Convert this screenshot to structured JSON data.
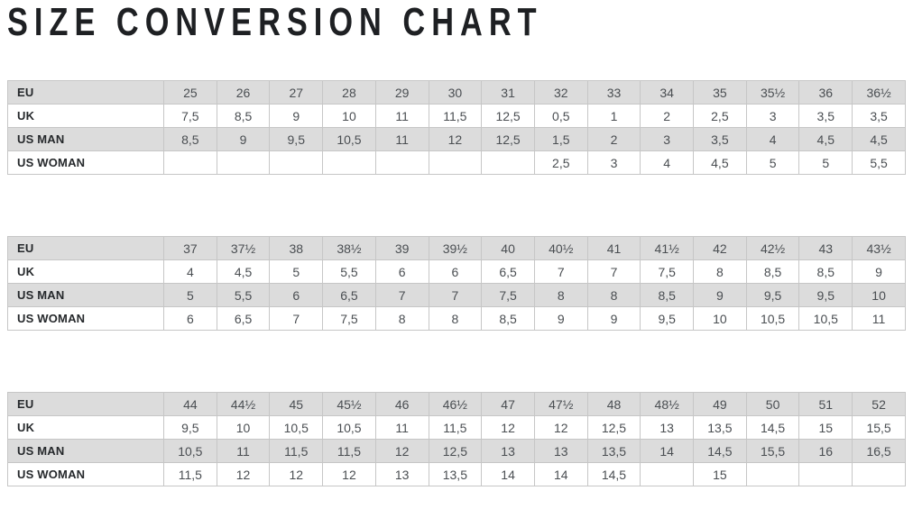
{
  "title": "SIZE CONVERSION CHART",
  "colors": {
    "row_shade": "#dcdcdc",
    "border": "#c6c6c6",
    "label_text": "#25282b",
    "value_text": "#4a4e52",
    "title_text": "#1e2023"
  },
  "chart_data": [
    {
      "type": "table",
      "title": "EU sizes 25 - 36½",
      "rows": [
        {
          "label": "EU",
          "values": [
            "25",
            "26",
            "27",
            "28",
            "29",
            "30",
            "31",
            "32",
            "33",
            "34",
            "35",
            "35½",
            "36",
            "36½"
          ]
        },
        {
          "label": "UK",
          "values": [
            "7,5",
            "8,5",
            "9",
            "10",
            "11",
            "11,5",
            "12,5",
            "0,5",
            "1",
            "2",
            "2,5",
            "3",
            "3,5",
            "3,5"
          ]
        },
        {
          "label": "US MAN",
          "values": [
            "8,5",
            "9",
            "9,5",
            "10,5",
            "11",
            "12",
            "12,5",
            "1,5",
            "2",
            "3",
            "3,5",
            "4",
            "4,5",
            "4,5"
          ]
        },
        {
          "label": "US WOMAN",
          "values": [
            "",
            "",
            "",
            "",
            "",
            "",
            "",
            "2,5",
            "3",
            "4",
            "4,5",
            "5",
            "5",
            "5,5"
          ]
        }
      ]
    },
    {
      "type": "table",
      "title": "EU sizes 37 - 43½",
      "rows": [
        {
          "label": "EU",
          "values": [
            "37",
            "37½",
            "38",
            "38½",
            "39",
            "39½",
            "40",
            "40½",
            "41",
            "41½",
            "42",
            "42½",
            "43",
            "43½"
          ]
        },
        {
          "label": "UK",
          "values": [
            "4",
            "4,5",
            "5",
            "5,5",
            "6",
            "6",
            "6,5",
            "7",
            "7",
            "7,5",
            "8",
            "8,5",
            "8,5",
            "9"
          ]
        },
        {
          "label": "US MAN",
          "values": [
            "5",
            "5,5",
            "6",
            "6,5",
            "7",
            "7",
            "7,5",
            "8",
            "8",
            "8,5",
            "9",
            "9,5",
            "9,5",
            "10"
          ]
        },
        {
          "label": "US WOMAN",
          "values": [
            "6",
            "6,5",
            "7",
            "7,5",
            "8",
            "8",
            "8,5",
            "9",
            "9",
            "9,5",
            "10",
            "10,5",
            "10,5",
            "11"
          ]
        }
      ]
    },
    {
      "type": "table",
      "title": "EU sizes 44 - 52",
      "rows": [
        {
          "label": "EU",
          "values": [
            "44",
            "44½",
            "45",
            "45½",
            "46",
            "46½",
            "47",
            "47½",
            "48",
            "48½",
            "49",
            "50",
            "51",
            "52"
          ]
        },
        {
          "label": "UK",
          "values": [
            "9,5",
            "10",
            "10,5",
            "10,5",
            "11",
            "11,5",
            "12",
            "12",
            "12,5",
            "13",
            "13,5",
            "14,5",
            "15",
            "15,5"
          ]
        },
        {
          "label": "US MAN",
          "values": [
            "10,5",
            "11",
            "11,5",
            "11,5",
            "12",
            "12,5",
            "13",
            "13",
            "13,5",
            "14",
            "14,5",
            "15,5",
            "16",
            "16,5"
          ]
        },
        {
          "label": "US WOMAN",
          "values": [
            "11,5",
            "12",
            "12",
            "12",
            "13",
            "13,5",
            "14",
            "14",
            "14,5",
            "",
            "15",
            "",
            "",
            ""
          ]
        }
      ]
    }
  ]
}
